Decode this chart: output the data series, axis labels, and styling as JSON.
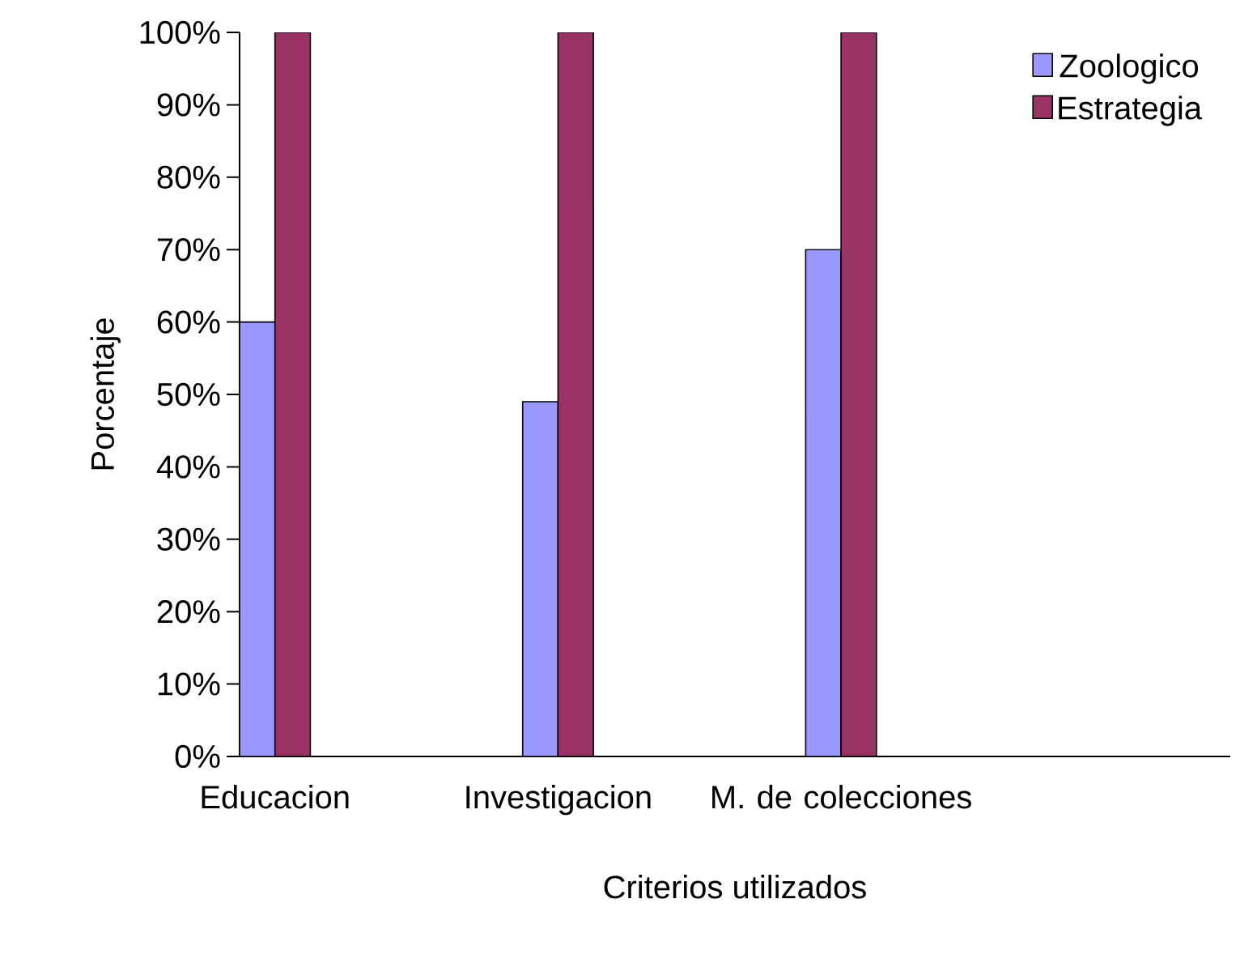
{
  "chart_data": {
    "type": "bar",
    "xlabel": "Criterios utilizados",
    "ylabel": "Porcentaje",
    "categories": [
      "Educacion",
      null,
      null,
      null,
      "Investigacion",
      null,
      null,
      null,
      "M. de colecciones",
      null,
      null,
      null,
      null,
      null
    ],
    "series": [
      {
        "name": "Zoologico",
        "color": "#9999ff",
        "values": [
          60,
          null,
          null,
          null,
          49,
          null,
          null,
          null,
          70,
          null,
          null,
          null,
          null,
          null
        ]
      },
      {
        "name": "Estrategia",
        "color": "#993366",
        "values": [
          100,
          null,
          null,
          null,
          100,
          null,
          null,
          null,
          100,
          null,
          null,
          null,
          null,
          null
        ]
      }
    ],
    "ylim": [
      0,
      100
    ],
    "yticks": [
      {
        "value": 0,
        "label": "0%"
      },
      {
        "value": 10,
        "label": "10%"
      },
      {
        "value": 20,
        "label": "20%"
      },
      {
        "value": 30,
        "label": "30%"
      },
      {
        "value": 40,
        "label": "40%"
      },
      {
        "value": 50,
        "label": "50%"
      },
      {
        "value": 60,
        "label": "60%"
      },
      {
        "value": 70,
        "label": "70%"
      },
      {
        "value": 80,
        "label": "80%"
      },
      {
        "value": 90,
        "label": "90%"
      },
      {
        "value": 100,
        "label": "100%"
      }
    ],
    "grid": false,
    "legend": "top right"
  }
}
